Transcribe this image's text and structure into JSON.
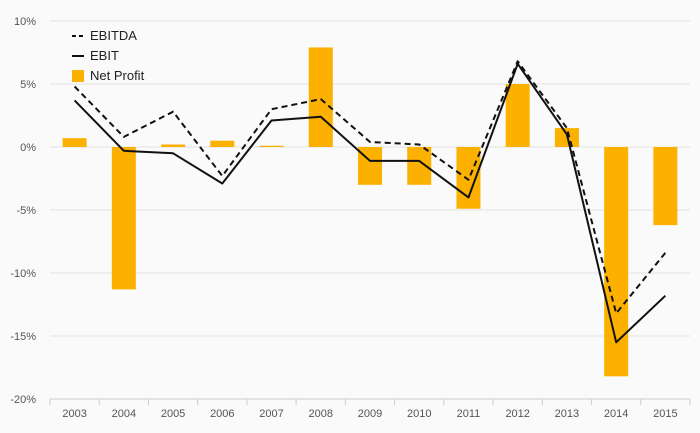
{
  "chart_data": {
    "type": "bar",
    "categories": [
      "2003",
      "2004",
      "2005",
      "2006",
      "2007",
      "2008",
      "2009",
      "2010",
      "2011",
      "2012",
      "2013",
      "2014",
      "2015"
    ],
    "series": [
      {
        "name": "EBITDA",
        "type": "line",
        "style": "dashed",
        "color": "#111111",
        "values": [
          4.8,
          0.8,
          2.8,
          -2.3,
          3.0,
          3.8,
          0.4,
          0.2,
          -2.6,
          6.8,
          1.5,
          -13.2,
          -8.4
        ]
      },
      {
        "name": "EBIT",
        "type": "line",
        "style": "solid",
        "color": "#111111",
        "values": [
          3.7,
          -0.3,
          -0.5,
          -2.9,
          2.1,
          2.4,
          -1.1,
          -1.1,
          -4.0,
          6.6,
          1.0,
          -15.5,
          -11.8
        ]
      },
      {
        "name": "Net Profit",
        "type": "bar",
        "color": "#FCB000",
        "values": [
          0.7,
          -11.3,
          0.2,
          0.5,
          0.1,
          7.9,
          -3.0,
          -3.0,
          -4.9,
          5.0,
          1.5,
          -18.2,
          -6.2
        ]
      }
    ],
    "y_ticks": [
      "10%",
      "5%",
      "0%",
      "-5%",
      "-10%",
      "-15%",
      "-20%"
    ],
    "y_tick_values": [
      10,
      5,
      0,
      -5,
      -10,
      -15,
      -20
    ],
    "ylim": [
      -20,
      10
    ],
    "legend_position": "top-left",
    "grid": true,
    "colors": {
      "grid": "#e3e3e3",
      "axis": "#cccccc",
      "background": "#fafafa"
    }
  }
}
